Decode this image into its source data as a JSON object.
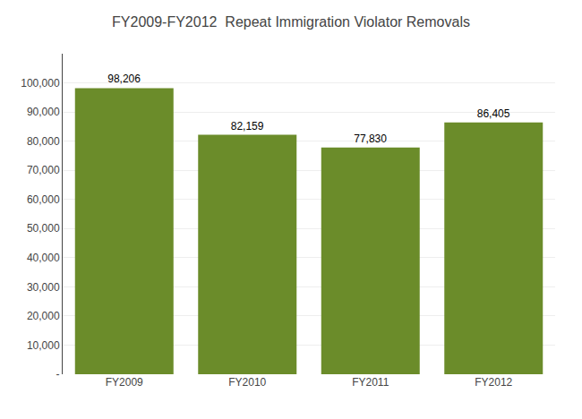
{
  "chart_data": {
    "type": "bar",
    "title": "FY2009-FY2012  Repeat Immigration Violator Removals",
    "categories": [
      "FY2009",
      "FY2010",
      "FY2011",
      "FY2012"
    ],
    "values": [
      98206,
      82159,
      77830,
      86405
    ],
    "value_labels": [
      "98,206",
      "82,159",
      "77,830",
      "86,405"
    ],
    "data_labels": true,
    "color": "#6b8c2a",
    "ylim": [
      0,
      110000
    ],
    "yticks": [
      {
        "value": 0,
        "label": "-"
      },
      {
        "value": 10000,
        "label": "10,000"
      },
      {
        "value": 20000,
        "label": "20,000"
      },
      {
        "value": 30000,
        "label": "30,000"
      },
      {
        "value": 40000,
        "label": "40,000"
      },
      {
        "value": 50000,
        "label": "50,000"
      },
      {
        "value": 60000,
        "label": "60,000"
      },
      {
        "value": 70000,
        "label": "70,000"
      },
      {
        "value": 80000,
        "label": "80,000"
      },
      {
        "value": 90000,
        "label": "90,000"
      },
      {
        "value": 100000,
        "label": "100,000"
      }
    ],
    "grid": true
  }
}
